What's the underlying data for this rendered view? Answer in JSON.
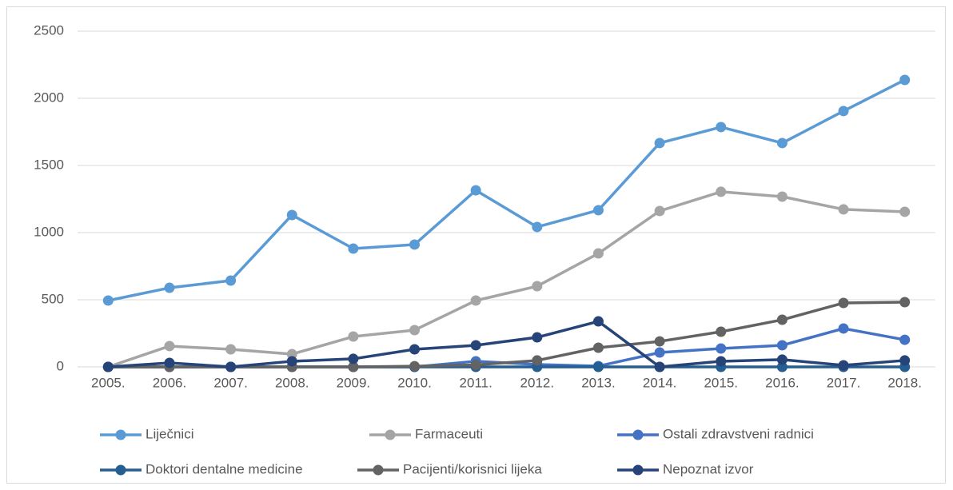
{
  "chart_data": {
    "type": "line",
    "categories": [
      "2005.",
      "2006.",
      "2007.",
      "2008.",
      "2009.",
      "2010.",
      "2011.",
      "2012.",
      "2013.",
      "2014.",
      "2015.",
      "2016.",
      "2017.",
      "2018."
    ],
    "series": [
      {
        "name": "Liječnici",
        "color": "#5b9bd5",
        "values": [
          494,
          589,
          643,
          1131,
          881,
          911,
          1315,
          1042,
          1167,
          1667,
          1786,
          1667,
          1905,
          2137
        ]
      },
      {
        "name": "Farmaceuti",
        "color": "#a5a5a5",
        "values": [
          0,
          155,
          131,
          95,
          226,
          274,
          494,
          601,
          845,
          1161,
          1304,
          1268,
          1173,
          1155
        ]
      },
      {
        "name": "Ostali zdravstveni radnici",
        "color": "#4472c4",
        "values": [
          0,
          0,
          0,
          0,
          0,
          0,
          42,
          18,
          6,
          107,
          137,
          161,
          286,
          202
        ]
      },
      {
        "name": "Doktori dentalne medicine",
        "color": "#255e91",
        "values": [
          0,
          0,
          0,
          0,
          0,
          0,
          0,
          0,
          0,
          0,
          0,
          0,
          0,
          0
        ]
      },
      {
        "name": "Pacijenti/korisnici lijeka",
        "color": "#636363",
        "values": [
          0,
          0,
          0,
          0,
          0,
          5,
          15,
          48,
          143,
          190,
          262,
          351,
          476,
          482
        ]
      },
      {
        "name": "Nepoznat izvor",
        "color": "#264478",
        "values": [
          0,
          30,
          0,
          42,
          60,
          131,
          161,
          220,
          339,
          0,
          42,
          54,
          12,
          48
        ]
      }
    ],
    "ylim": [
      0,
      2500
    ],
    "yticks": [
      0,
      500,
      1000,
      1500,
      2000,
      2500
    ],
    "grid": true
  }
}
